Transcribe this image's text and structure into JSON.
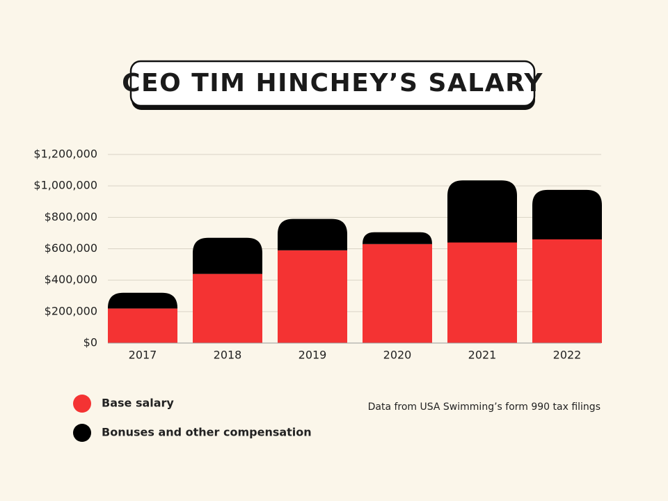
{
  "chart_data": {
    "type": "stacked_bar",
    "title": "CEO TIM HINCHEY’S SALARY",
    "source": "Data from USA Swimming’s form 990 tax filings",
    "categories": [
      "2017",
      "2018",
      "2019",
      "2020",
      "2021",
      "2022"
    ],
    "series": [
      {
        "name": "Base salary",
        "color": "#f43333",
        "values": [
          220000,
          440000,
          590000,
          630000,
          640000,
          660000
        ]
      },
      {
        "name": "Bonuses and other compensation",
        "color": "#000000",
        "values": [
          100000,
          230000,
          200000,
          75000,
          395000,
          315000
        ]
      }
    ],
    "ylim": [
      0,
      1200000
    ],
    "yticks": [
      {
        "value": 0,
        "label": "$0"
      },
      {
        "value": 200000,
        "label": "$200,000"
      },
      {
        "value": 400000,
        "label": "$400,000"
      },
      {
        "value": 600000,
        "label": "$600,000"
      },
      {
        "value": 800000,
        "label": "$800,000"
      },
      {
        "value": 1000000,
        "label": "$1,000,000"
      },
      {
        "value": 1200000,
        "label": "$1,200,000"
      }
    ],
    "grid": true
  }
}
